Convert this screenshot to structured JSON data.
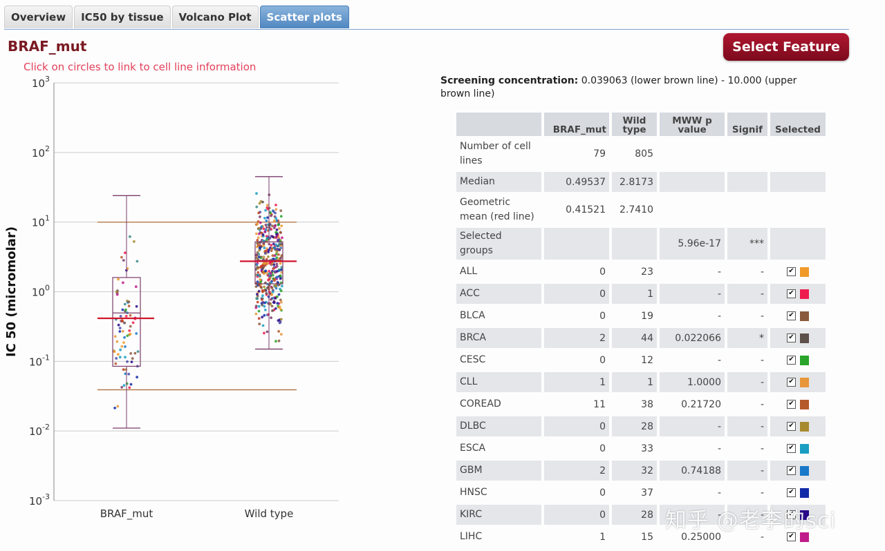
{
  "tabs": [
    {
      "label": "Overview",
      "active": false
    },
    {
      "label": "IC50 by tissue",
      "active": false
    },
    {
      "label": "Volcano Plot",
      "active": false
    },
    {
      "label": "Scatter plots",
      "active": true
    }
  ],
  "feature_title": "BRAF_mut",
  "hint": "Click on circles to link to cell line information",
  "select_feature_label": "Select Feature",
  "screening": {
    "label": "Screening concentration:",
    "text": "0.039063 (lower brown line) - 10.000 (upper brown line)"
  },
  "table": {
    "headers": [
      "",
      "BRAF_mut",
      "Wild type",
      "MWW p value",
      "Signif",
      "Selected"
    ],
    "summary_rows": [
      {
        "label": "Number of cell lines",
        "braf": "79",
        "wild": "805",
        "p": "",
        "signif": ""
      },
      {
        "label": "Median",
        "braf": "0.49537",
        "wild": "2.8173",
        "p": "",
        "signif": ""
      },
      {
        "label": "Geometric mean (red line)",
        "braf": "0.41521",
        "wild": "2.7410",
        "p": "",
        "signif": ""
      },
      {
        "label": "Selected groups",
        "braf": "",
        "wild": "",
        "p": "5.96e-17",
        "signif": "***"
      }
    ],
    "tissue_rows": [
      {
        "label": "ALL",
        "braf": "0",
        "wild": "23",
        "p": "-",
        "signif": "-",
        "color": "#f09a2a"
      },
      {
        "label": "ACC",
        "braf": "0",
        "wild": "1",
        "p": "-",
        "signif": "-",
        "color": "#ee1d4e"
      },
      {
        "label": "BLCA",
        "braf": "0",
        "wild": "19",
        "p": "-",
        "signif": "-",
        "color": "#8a5a3c"
      },
      {
        "label": "BRCA",
        "braf": "2",
        "wild": "44",
        "p": "0.022066",
        "signif": "*",
        "color": "#5d4f4a"
      },
      {
        "label": "CESC",
        "braf": "0",
        "wild": "12",
        "p": "-",
        "signif": "-",
        "color": "#2aa52a"
      },
      {
        "label": "CLL",
        "braf": "1",
        "wild": "1",
        "p": "1.0000",
        "signif": "-",
        "color": "#e8963a"
      },
      {
        "label": "COREAD",
        "braf": "11",
        "wild": "38",
        "p": "0.21720",
        "signif": "-",
        "color": "#b5582a"
      },
      {
        "label": "DLBC",
        "braf": "0",
        "wild": "28",
        "p": "-",
        "signif": "-",
        "color": "#a88a2e"
      },
      {
        "label": "ESCA",
        "braf": "0",
        "wild": "33",
        "p": "-",
        "signif": "-",
        "color": "#1b9ec2"
      },
      {
        "label": "GBM",
        "braf": "2",
        "wild": "32",
        "p": "0.74188",
        "signif": "-",
        "color": "#1a78c8"
      },
      {
        "label": "HNSC",
        "braf": "0",
        "wild": "37",
        "p": "-",
        "signif": "-",
        "color": "#102aa8"
      },
      {
        "label": "KIRC",
        "braf": "0",
        "wild": "28",
        "p": "-",
        "signif": "-",
        "color": "#2a0a8a"
      },
      {
        "label": "LIHC",
        "braf": "1",
        "wild": "15",
        "p": "0.25000",
        "signif": "-",
        "color": "#c01a8a"
      }
    ]
  },
  "watermark": "知乎 @老李的sci",
  "chart_data": {
    "type": "scatter",
    "ylabel": "IC 50 (micromolar)",
    "yscale": "log",
    "ylim": [
      0.001,
      1000
    ],
    "y_ticks": [
      {
        "value": 0.001,
        "base": "10",
        "exp": "-3"
      },
      {
        "value": 0.01,
        "base": "10",
        "exp": "-2"
      },
      {
        "value": 0.1,
        "base": "10",
        "exp": "-1"
      },
      {
        "value": 1,
        "base": "10",
        "exp": "0"
      },
      {
        "value": 10,
        "base": "10",
        "exp": "1"
      },
      {
        "value": 100,
        "base": "10",
        "exp": "2"
      },
      {
        "value": 1000,
        "base": "10",
        "exp": "3"
      }
    ],
    "categories": [
      "BRAF_mut",
      "Wild type"
    ],
    "screening_lines": [
      0.039063,
      10.0
    ],
    "groups": [
      {
        "name": "BRAF_mut",
        "n": 79,
        "median": 0.49537,
        "geometric_mean": 0.41521,
        "q1": 0.085,
        "q3": 1.6,
        "whisker_low": 0.011,
        "whisker_high": 24
      },
      {
        "name": "Wild type",
        "n": 805,
        "median": 2.8173,
        "geometric_mean": 2.741,
        "q1": 1.3,
        "q3": 5.2,
        "whisker_low": 0.15,
        "whisker_high": 45
      }
    ],
    "colors": {
      "box": "#7a3b6a",
      "mean": "#d0142c",
      "screen": "#b57a4a",
      "grid": "#cccccc"
    }
  }
}
